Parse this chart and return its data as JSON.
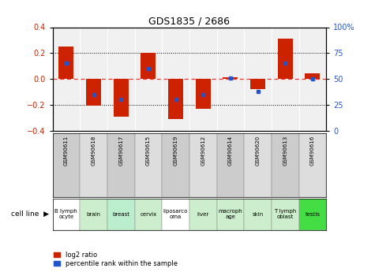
{
  "title": "GDS1835 / 2686",
  "samples": [
    "GSM90611",
    "GSM90618",
    "GSM90617",
    "GSM90615",
    "GSM90619",
    "GSM90612",
    "GSM90614",
    "GSM90620",
    "GSM90613",
    "GSM90616"
  ],
  "cell_lines": [
    "B lymph\nocyte",
    "brain",
    "breast",
    "cervix",
    "liposarco\noma",
    "liver",
    "macroph\nage",
    "skin",
    "T lymph\noblast",
    "testis"
  ],
  "cell_line_colors": [
    "#ffffff",
    "#ccffcc",
    "#ccffcc",
    "#ccffcc",
    "#ffffff",
    "#ccffcc",
    "#ccffcc",
    "#ccffcc",
    "#ccffcc",
    "#44ee44"
  ],
  "log2_ratio": [
    0.25,
    -0.21,
    -0.29,
    0.2,
    -0.31,
    -0.23,
    0.01,
    -0.08,
    0.31,
    0.04
  ],
  "percentile_rank": [
    65,
    35,
    30,
    60,
    30,
    35,
    51,
    38,
    65,
    50
  ],
  "bar_color": "#cc2200",
  "marker_color": "#2255cc",
  "dashed_color": "#ee3333",
  "ylim": [
    -0.4,
    0.4
  ],
  "y2lim": [
    0,
    100
  ],
  "yticks": [
    -0.4,
    -0.2,
    0.0,
    0.2,
    0.4
  ],
  "y2ticks": [
    0,
    25,
    50,
    75,
    100
  ],
  "sample_bg_odd": "#cccccc",
  "sample_bg_even": "#dddddd",
  "legend_bar_label": "log2 ratio",
  "legend_marker_label": "percentile rank within the sample"
}
